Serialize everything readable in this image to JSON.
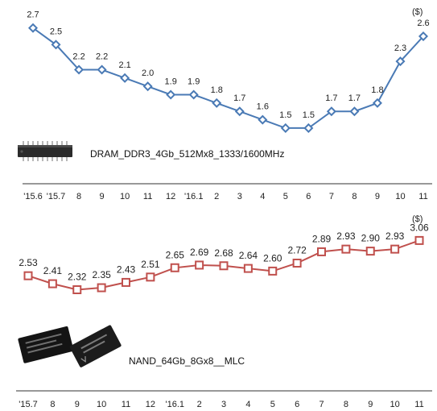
{
  "chart_data": [
    {
      "type": "line",
      "unit_label": "($)",
      "caption": "DRAM_DDR3_4Gb_512Mx8_1333/1600MHz",
      "categories": [
        "'15.6",
        "'15.7",
        "8",
        "9",
        "10",
        "11",
        "12",
        "'16.1",
        "2",
        "3",
        "4",
        "5",
        "6",
        "7",
        "8",
        "9",
        "10",
        "11"
      ],
      "series": [
        {
          "values": [
            2.7,
            2.5,
            2.2,
            2.2,
            2.1,
            2.0,
            1.9,
            1.9,
            1.8,
            1.7,
            1.6,
            1.5,
            1.5,
            1.7,
            1.7,
            1.8,
            2.3,
            2.6
          ],
          "labels": [
            "2.7",
            "2.5",
            "2.2",
            "2.2",
            "2.1",
            "2.0",
            "1.9",
            "1.9",
            "1.8",
            "1.7",
            "1.6",
            "1.5",
            "1.5",
            "1.7",
            "1.7",
            "1.8",
            "2.3",
            "2.6"
          ],
          "color": "#4a7ab5",
          "marker": "diamond"
        }
      ],
      "ylim": [
        1.2,
        2.9
      ]
    },
    {
      "type": "line",
      "unit_label": "($)",
      "caption": "NAND_64Gb_8Gx8__MLC",
      "categories": [
        "'15.7",
        "8",
        "9",
        "10",
        "11",
        "12",
        "'16.1",
        "2",
        "3",
        "4",
        "5",
        "6",
        "7",
        "8",
        "9",
        "10",
        "11"
      ],
      "series": [
        {
          "values": [
            2.53,
            2.41,
            2.32,
            2.35,
            2.43,
            2.51,
            2.65,
            2.69,
            2.68,
            2.64,
            2.6,
            2.72,
            2.89,
            2.93,
            2.9,
            2.93,
            3.06
          ],
          "labels": [
            "2.53",
            "2.41",
            "2.32",
            "2.35",
            "2.43",
            "2.51",
            "2.65",
            "2.69",
            "2.68",
            "2.64",
            "2.60",
            "2.72",
            "2.89",
            "2.93",
            "2.90",
            "2.93",
            "3.06"
          ],
          "color": "#c0504d",
          "marker": "square"
        }
      ],
      "ylim": [
        1.2,
        4.3
      ]
    }
  ]
}
